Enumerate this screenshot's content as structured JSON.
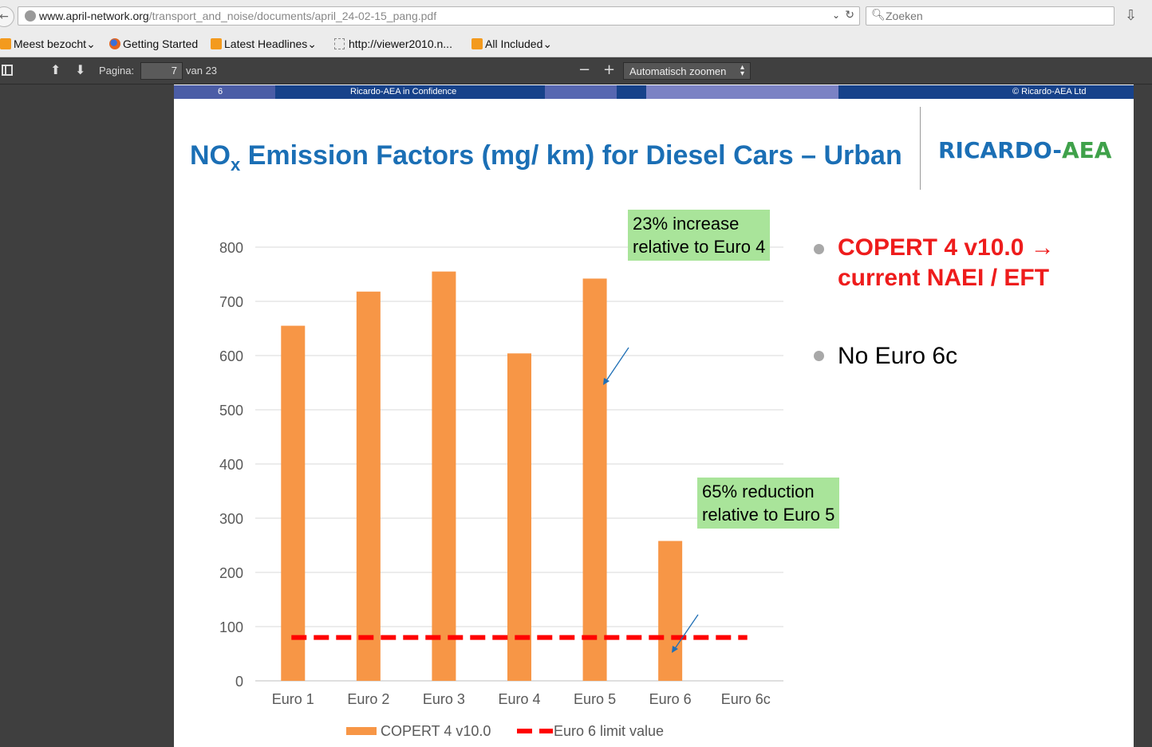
{
  "browser": {
    "url_host": "www.april-network.org",
    "url_path": "/transport_and_noise/documents/april_24-02-15_pang.pdf",
    "search_placeholder": "Zoeken",
    "bookmarks": [
      {
        "label": "Meest bezocht",
        "icon": "rss-icon",
        "dropdown": true
      },
      {
        "label": "Getting Started",
        "icon": "firefox-icon",
        "dropdown": false
      },
      {
        "label": "Latest Headlines",
        "icon": "rss-icon",
        "dropdown": true
      },
      {
        "label": "http://viewer2010.n...",
        "icon": "blank-page-icon",
        "dropdown": false
      },
      {
        "label": "All Included",
        "icon": "rss-icon",
        "dropdown": true
      }
    ]
  },
  "pdf_toolbar": {
    "page_label": "Pagina:",
    "page_value": "7",
    "page_total": "van 23",
    "zoom_label": "Automatisch zoomen",
    "zoom_out": "−",
    "zoom_in": "+"
  },
  "slide": {
    "header_number": "6",
    "header_confidential": "Ricardo-AEA in Confidence",
    "header_copyright": "© Ricardo-AEA Ltd",
    "title_pre": "NO",
    "title_sub": "x",
    "title_post": " Emission Factors (mg/ km) for Diesel Cars – Urban",
    "logo_main": "RICARDO",
    "logo_dash": "-",
    "logo_aea": "AEA",
    "callout_top": [
      "23% increase",
      "relative to Euro 4"
    ],
    "callout_bottom": [
      "65% reduction",
      "relative to Euro 5"
    ],
    "bullet1": [
      "COPERT 4 v10.0 →",
      "current NAEI / EFT"
    ],
    "bullet2": "No Euro 6c",
    "colors": {
      "accent_blue": "#1b6fb5",
      "bar_orange": "#f79646",
      "limit_red": "#ff0000",
      "callout_green": "#a9e49a",
      "bullet_red": "#ee1c1c"
    }
  },
  "chart_data": {
    "type": "bar",
    "categories": [
      "Euro 1",
      "Euro 2",
      "Euro 3",
      "Euro 4",
      "Euro 5",
      "Euro 6",
      "Euro 6c"
    ],
    "series": [
      {
        "name": "COPERT 4 v10.0",
        "type": "bar",
        "values": [
          655,
          718,
          755,
          604,
          742,
          258,
          null
        ]
      },
      {
        "name": "Euro 6 limit value",
        "type": "dashed-line",
        "values": [
          80,
          80,
          80,
          80,
          80,
          80,
          80
        ]
      }
    ],
    "yticks": [
      "0",
      "100",
      "200",
      "300",
      "400",
      "500",
      "600",
      "700",
      "800"
    ],
    "ylim": [
      0,
      800
    ],
    "grid": true,
    "legend": "bottom"
  }
}
